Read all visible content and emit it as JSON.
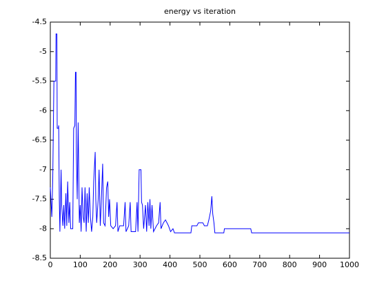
{
  "chart_data": {
    "type": "line",
    "title": "energy vs iteration",
    "x": [
      0,
      5,
      8,
      12,
      18,
      19,
      22,
      23,
      27,
      28,
      30,
      32,
      36,
      38,
      42,
      45,
      48,
      52,
      55,
      58,
      62,
      65,
      68,
      75,
      78,
      82,
      84,
      86,
      87,
      90,
      93,
      95,
      97,
      100,
      103,
      106,
      110,
      113,
      116,
      120,
      123,
      127,
      130,
      134,
      138,
      142,
      145,
      150,
      152,
      155,
      160,
      163,
      167,
      170,
      175,
      178,
      183,
      188,
      192,
      195,
      198,
      202,
      210,
      218,
      223,
      226,
      232,
      245,
      250,
      253,
      262,
      267,
      270,
      285,
      290,
      293,
      297,
      303,
      305,
      308,
      312,
      318,
      322,
      326,
      330,
      333,
      336,
      340,
      345,
      355,
      362,
      367,
      370,
      378,
      385,
      395,
      402,
      410,
      415,
      470,
      473,
      490,
      495,
      510,
      515,
      525,
      530,
      536,
      540,
      543,
      547,
      550,
      580,
      582,
      670,
      673,
      1000
    ],
    "series": [
      {
        "name": "energy",
        "color": "#0000ff",
        "values": [
          -7.3,
          -7.8,
          -7.2,
          -5.5,
          -5.5,
          -4.7,
          -4.7,
          -6.3,
          -6.3,
          -6.25,
          -7.5,
          -8.05,
          -7.0,
          -7.6,
          -7.95,
          -7.6,
          -8.0,
          -7.4,
          -7.95,
          -7.2,
          -7.9,
          -7.55,
          -8.0,
          -8.0,
          -6.3,
          -6.25,
          -5.35,
          -5.35,
          -6.7,
          -7.5,
          -6.2,
          -7.0,
          -7.9,
          -7.6,
          -8.05,
          -7.3,
          -7.8,
          -7.9,
          -7.3,
          -8.05,
          -7.4,
          -7.9,
          -7.3,
          -7.8,
          -8.05,
          -7.8,
          -7.2,
          -6.7,
          -7.5,
          -7.9,
          -7.5,
          -7.0,
          -7.95,
          -7.6,
          -6.9,
          -7.9,
          -7.95,
          -7.3,
          -7.2,
          -7.8,
          -7.5,
          -7.95,
          -8.0,
          -7.95,
          -7.55,
          -8.05,
          -7.95,
          -7.95,
          -7.55,
          -8.05,
          -7.95,
          -7.55,
          -8.05,
          -8.05,
          -7.55,
          -8.05,
          -7.0,
          -7.0,
          -7.55,
          -7.6,
          -8.0,
          -7.6,
          -8.05,
          -7.55,
          -7.95,
          -7.5,
          -8.0,
          -7.6,
          -8.05,
          -7.95,
          -7.9,
          -7.55,
          -8.0,
          -7.9,
          -7.85,
          -7.95,
          -8.05,
          -8.0,
          -8.07,
          -8.07,
          -7.95,
          -7.95,
          -7.9,
          -7.9,
          -7.95,
          -7.95,
          -7.85,
          -7.7,
          -7.45,
          -7.75,
          -7.9,
          -8.07,
          -8.07,
          -8.0,
          -8.0,
          -8.07,
          -8.07
        ]
      }
    ],
    "xlim": [
      0,
      1000
    ],
    "xticks": [
      0,
      100,
      200,
      300,
      400,
      500,
      600,
      700,
      800,
      900,
      1000
    ],
    "ylim": [
      -8.5,
      -4.5
    ],
    "yticks": [
      -8.5,
      -8,
      -7.5,
      -7,
      -6.5,
      -6,
      -5.5,
      -5,
      -4.5
    ]
  }
}
